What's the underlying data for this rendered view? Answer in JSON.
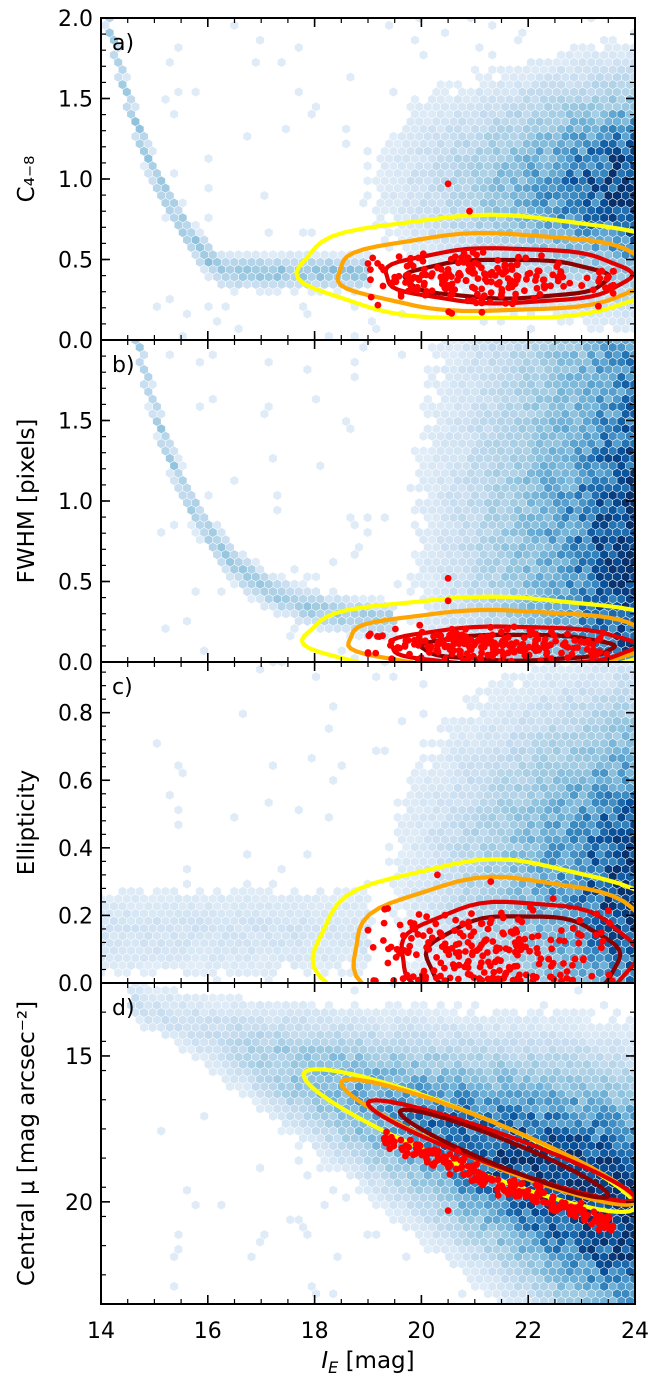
{
  "chart_data": [
    {
      "type": "scatter",
      "panel_label": "a)",
      "ylabel": "C₄₋₈",
      "ylim": [
        0.0,
        2.0
      ],
      "yticks": [
        "0.0",
        "0.5",
        "1.0",
        "1.5",
        "2.0"
      ],
      "ytick_values": [
        0.0,
        0.5,
        1.0,
        1.5,
        2.0
      ],
      "density_description": "blue hexbin density",
      "contours": [
        {
          "color": "#ffff00",
          "center": [
            21.3,
            0.45
          ],
          "semi_axes": [
            3.6,
            0.32
          ]
        },
        {
          "color": "#ffa500",
          "center": [
            21.4,
            0.42
          ],
          "semi_axes": [
            3.0,
            0.24
          ]
        },
        {
          "color": "#e00000",
          "center": [
            21.6,
            0.4
          ],
          "semi_axes": [
            2.3,
            0.17
          ]
        },
        {
          "color": "#8b0000",
          "center": [
            21.6,
            0.38
          ],
          "semi_axes": [
            1.9,
            0.12
          ]
        }
      ],
      "points_summary": {
        "x_range": [
          19.0,
          23.6
        ],
        "y_center": 0.38,
        "y_spread": 0.08,
        "outliers": [
          [
            20.5,
            0.97
          ],
          [
            20.9,
            0.8
          ]
        ]
      }
    },
    {
      "type": "scatter",
      "panel_label": "b)",
      "ylabel": "FWHM [pixels]",
      "ylim": [
        0.0,
        2.0
      ],
      "yticks": [
        "0.0",
        "0.5",
        "1.0",
        "1.5"
      ],
      "ytick_values": [
        0.0,
        0.5,
        1.0,
        1.5
      ],
      "density_description": "blue hexbin density",
      "contours": [
        {
          "color": "#ffff00",
          "center": [
            21.3,
            0.16
          ],
          "semi_axes": [
            3.5,
            0.24
          ]
        },
        {
          "color": "#ffa500",
          "center": [
            21.5,
            0.14
          ],
          "semi_axes": [
            2.9,
            0.18
          ]
        },
        {
          "color": "#e00000",
          "center": [
            21.7,
            0.1
          ],
          "semi_axes": [
            2.3,
            0.12
          ]
        },
        {
          "color": "#8b0000",
          "center": [
            21.8,
            0.09
          ],
          "semi_axes": [
            1.8,
            0.08
          ]
        }
      ],
      "points_summary": {
        "x_range": [
          19.0,
          23.6
        ],
        "y_center": 0.1,
        "y_spread": 0.05,
        "outliers": [
          [
            20.5,
            0.52
          ],
          [
            20.5,
            0.38
          ]
        ]
      }
    },
    {
      "type": "scatter",
      "panel_label": "c)",
      "ylabel": "Ellipticity",
      "ylim": [
        0.0,
        0.95
      ],
      "yticks": [
        "0.0",
        "0.2",
        "0.4",
        "0.6",
        "0.8"
      ],
      "ytick_values": [
        0.0,
        0.2,
        0.4,
        0.6,
        0.8
      ],
      "density_description": "blue hexbin density",
      "contours": [
        {
          "color": "#ffff00",
          "center": [
            21.4,
            0.1
          ],
          "semi_axes": [
            3.4,
            0.26
          ]
        },
        {
          "color": "#ffa500",
          "center": [
            21.6,
            0.09
          ],
          "semi_axes": [
            2.9,
            0.22
          ]
        },
        {
          "color": "#e00000",
          "center": [
            21.8,
            0.08
          ],
          "semi_axes": [
            2.2,
            0.16
          ]
        },
        {
          "color": "#8b0000",
          "center": [
            21.9,
            0.07
          ],
          "semi_axes": [
            1.8,
            0.13
          ]
        }
      ],
      "points_summary": {
        "x_range": [
          19.0,
          23.6
        ],
        "y_center": 0.08,
        "y_spread": 0.07,
        "outliers": [
          [
            20.3,
            0.32
          ],
          [
            21.3,
            0.3
          ]
        ]
      }
    },
    {
      "type": "scatter",
      "panel_label": "d)",
      "ylabel": "Central μ [mag arcsec⁻²]",
      "ylim": [
        12.5,
        23.5
      ],
      "y_inverted": true,
      "yticks": [
        "15",
        "20"
      ],
      "ytick_values": [
        15,
        20
      ],
      "density_description": "blue hexbin density",
      "contours": [
        {
          "color": "#ffff00",
          "from": [
            17.8,
            15.6
          ],
          "to": [
            24.0,
            20.2
          ],
          "width": 0.9
        },
        {
          "color": "#ffa500",
          "from": [
            18.5,
            15.9
          ],
          "to": [
            24.0,
            20.0
          ],
          "width": 0.7
        },
        {
          "color": "#e00000",
          "from": [
            19.0,
            16.6
          ],
          "to": [
            24.0,
            19.9
          ],
          "width": 0.55
        },
        {
          "color": "#8b0000",
          "from": [
            19.6,
            16.9
          ],
          "to": [
            23.5,
            19.8
          ],
          "width": 0.45
        }
      ],
      "points_summary": {
        "relation": "linear",
        "slope": 0.72,
        "intercept_at_20": 18.3,
        "outliers": [
          [
            20.5,
            20.3
          ]
        ]
      }
    }
  ],
  "shared_x": {
    "xlabel_main": "I",
    "xlabel_sub": "E",
    "xlabel_unit": " [mag]",
    "xlim": [
      14,
      24
    ],
    "xticks": [
      "14",
      "16",
      "18",
      "20",
      "22",
      "24"
    ],
    "xtick_values": [
      14,
      16,
      18,
      20,
      22,
      24
    ]
  },
  "colors": {
    "density_light": "#eef5fc",
    "density_dark": "#08306b",
    "points": "#ff0000"
  }
}
